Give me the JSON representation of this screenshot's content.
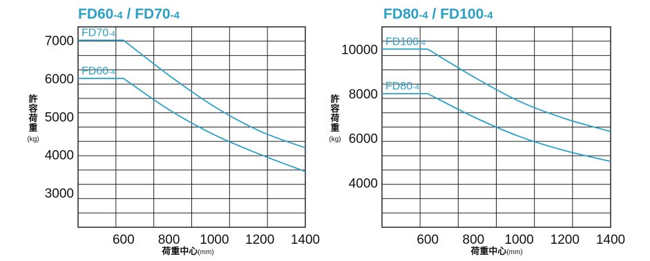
{
  "chart_data": [
    {
      "type": "line",
      "title_main": "FD60",
      "title_sub": "-4",
      "title_sep": " / ",
      "title_main2": "FD70",
      "title_sub2": "-4",
      "ylabel_chars": [
        "許",
        "容",
        "荷",
        "重"
      ],
      "ylabel_unit": "(kg)",
      "xlabel": "荷重中心",
      "xlabel_unit": "(mm)",
      "xlim": [
        400,
        1400
      ],
      "ylim": [
        2100,
        7350
      ],
      "xticks": [
        600,
        800,
        1000,
        1200,
        1400
      ],
      "yticks": [
        3000,
        4000,
        5000,
        6000,
        7000
      ],
      "grid": true,
      "series": [
        {
          "name": "FD70",
          "name_sub": "-4",
          "x": [
            400,
            600,
            800,
            1000,
            1200,
            1400
          ],
          "y": [
            7000,
            7000,
            6080,
            5260,
            4620,
            4180
          ]
        },
        {
          "name": "FD60",
          "name_sub": "-4",
          "x": [
            400,
            600,
            800,
            1000,
            1200,
            1400
          ],
          "y": [
            6000,
            6000,
            5180,
            4520,
            4010,
            3560
          ]
        }
      ]
    },
    {
      "type": "line",
      "title_main": "FD80",
      "title_sub": "-4",
      "title_sep": " / ",
      "title_main2": "FD100",
      "title_sub2": "-4",
      "ylabel_chars": [
        "許",
        "容",
        "荷",
        "重"
      ],
      "ylabel_unit": "(kg)",
      "xlabel": "荷重中心",
      "xlabel_unit": "(mm)",
      "xlim": [
        400,
        1400
      ],
      "ylim": [
        2000,
        11000
      ],
      "xticks": [
        600,
        800,
        1000,
        1200,
        1400
      ],
      "yticks": [
        4000,
        6000,
        8000,
        10000
      ],
      "grid": true,
      "series": [
        {
          "name": "FD100",
          "name_sub": "-4",
          "x": [
            400,
            600,
            800,
            1000,
            1200,
            1400
          ],
          "y": [
            10000,
            10000,
            8760,
            7660,
            6880,
            6300
          ]
        },
        {
          "name": "FD80",
          "name_sub": "-4",
          "x": [
            400,
            600,
            800,
            1000,
            1200,
            1400
          ],
          "y": [
            8000,
            8000,
            6960,
            6080,
            5440,
            4960
          ]
        }
      ]
    }
  ],
  "colors": {
    "series": "#2aa0c8",
    "title": "#2aa0c8",
    "grid": "#222222",
    "text": "#111111"
  }
}
